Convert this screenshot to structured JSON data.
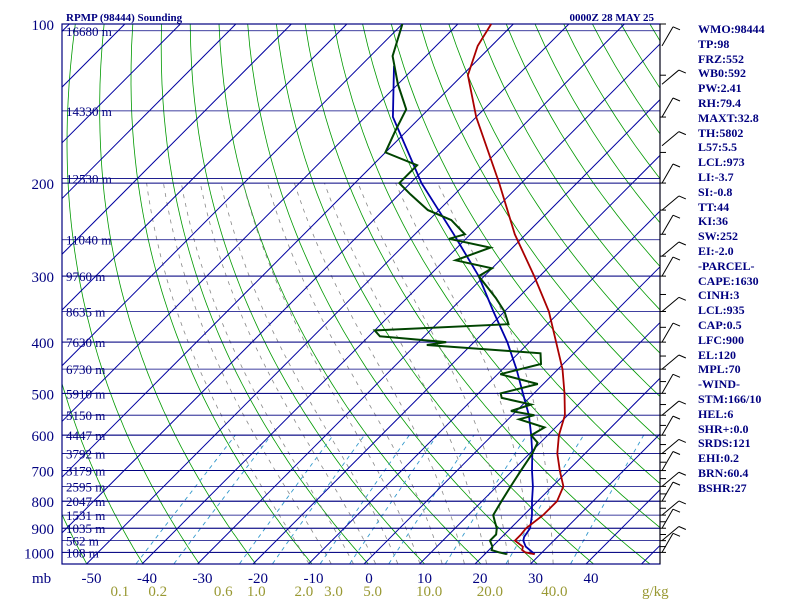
{
  "chart_data": {
    "type": "skew-t",
    "title_left": "RPMP (98444) Sounding",
    "title_right": "0000Z 28 MAY 25",
    "pressure_levels_mb": [
      100,
      200,
      300,
      400,
      500,
      600,
      700,
      800,
      900,
      1000
    ],
    "x_axis_unit_label": "mb",
    "temperature_ticks_c": [
      "-50",
      "-40",
      "-30",
      "-20",
      "-10",
      "0",
      "10",
      "20",
      "30",
      "40"
    ],
    "temperature_tick_values": [
      -50,
      -40,
      -30,
      -20,
      -10,
      0,
      10,
      20,
      30,
      40
    ],
    "mixing_ratio_labels": [
      "0.1",
      "0.2",
      "0.6",
      "1.0",
      "2.0",
      "3.0",
      "5.0",
      "10.0",
      "20.0",
      "40.0"
    ],
    "mixing_ratio_unit": "g/kg",
    "height_labels": [
      {
        "p": 103,
        "text": "16680 m"
      },
      {
        "p": 146,
        "text": "14330 m"
      },
      {
        "p": 196,
        "text": "12530 m"
      },
      {
        "p": 256,
        "text": "11040 m"
      },
      {
        "p": 300,
        "text": "9760 m"
      },
      {
        "p": 350,
        "text": "8635 m"
      },
      {
        "p": 400,
        "text": "7630 m"
      },
      {
        "p": 450,
        "text": "6730 m"
      },
      {
        "p": 500,
        "text": "5910 m"
      },
      {
        "p": 550,
        "text": "5150 m"
      },
      {
        "p": 600,
        "text": "4447 m"
      },
      {
        "p": 650,
        "text": "3792 m"
      },
      {
        "p": 700,
        "text": "3179 m"
      },
      {
        "p": 750,
        "text": "2595 m"
      },
      {
        "p": 800,
        "text": "2047 m"
      },
      {
        "p": 850,
        "text": "1531 m"
      },
      {
        "p": 900,
        "text": "1035 m"
      },
      {
        "p": 950,
        "text": "562 m"
      },
      {
        "p": 1000,
        "text": "108 m"
      }
    ],
    "temperature_profile": [
      [
        1008,
        29
      ],
      [
        1000,
        27
      ],
      [
        990,
        26
      ],
      [
        975,
        25.5
      ],
      [
        950,
        23
      ],
      [
        925,
        23
      ],
      [
        900,
        22.8
      ],
      [
        850,
        23.5
      ],
      [
        800,
        23.5
      ],
      [
        750,
        22
      ],
      [
        700,
        18.5
      ],
      [
        650,
        15
      ],
      [
        600,
        12
      ],
      [
        550,
        9.5
      ],
      [
        500,
        5.5
      ],
      [
        450,
        0.8
      ],
      [
        400,
        -5.2
      ],
      [
        350,
        -12
      ],
      [
        300,
        -21
      ],
      [
        250,
        -32
      ],
      [
        200,
        -44
      ],
      [
        150,
        -60
      ],
      [
        125,
        -69
      ],
      [
        110,
        -72.5
      ],
      [
        100,
        -74
      ]
    ],
    "dewpoint_profile": [
      [
        1008,
        24
      ],
      [
        1000,
        22.3
      ],
      [
        990,
        20.5
      ],
      [
        975,
        20
      ],
      [
        950,
        18.5
      ],
      [
        925,
        18.5
      ],
      [
        900,
        17.5
      ],
      [
        875,
        16
      ],
      [
        850,
        14.5
      ],
      [
        800,
        13.5
      ],
      [
        750,
        12.5
      ],
      [
        700,
        11.5
      ],
      [
        650,
        10.5
      ],
      [
        620,
        9.5
      ],
      [
        600,
        7
      ],
      [
        580,
        8
      ],
      [
        560,
        2
      ],
      [
        550,
        4
      ],
      [
        540,
        -1
      ],
      [
        525,
        1.5
      ],
      [
        510,
        -5
      ],
      [
        500,
        -6
      ],
      [
        480,
        -1
      ],
      [
        460,
        -9.5
      ],
      [
        440,
        -4
      ],
      [
        420,
        -6
      ],
      [
        405,
        -28
      ],
      [
        400,
        -25
      ],
      [
        390,
        -38
      ],
      [
        380,
        -40
      ],
      [
        370,
        -17
      ],
      [
        350,
        -20
      ],
      [
        330,
        -24
      ],
      [
        300,
        -31
      ],
      [
        290,
        -30
      ],
      [
        280,
        -38
      ],
      [
        265,
        -34
      ],
      [
        255,
        -43
      ],
      [
        250,
        -41
      ],
      [
        235,
        -46
      ],
      [
        225,
        -52
      ],
      [
        210,
        -58
      ],
      [
        200,
        -62
      ],
      [
        185,
        -62
      ],
      [
        175,
        -70
      ],
      [
        160,
        -72
      ],
      [
        145,
        -74
      ],
      [
        130,
        -80
      ],
      [
        115,
        -86
      ],
      [
        100,
        -90
      ]
    ],
    "parcel_profile": [
      [
        1008,
        29
      ],
      [
        990,
        27.4
      ],
      [
        975,
        26
      ],
      [
        950,
        24.5
      ],
      [
        935,
        24
      ],
      [
        900,
        23.5
      ],
      [
        850,
        21.5
      ],
      [
        800,
        19
      ],
      [
        750,
        16.5
      ],
      [
        700,
        13.5
      ],
      [
        650,
        10.5
      ],
      [
        600,
        7
      ],
      [
        550,
        3
      ],
      [
        500,
        -2
      ],
      [
        450,
        -7.5
      ],
      [
        400,
        -14
      ],
      [
        350,
        -22
      ],
      [
        300,
        -31
      ],
      [
        250,
        -43
      ],
      [
        200,
        -58
      ],
      [
        150,
        -75
      ],
      [
        120,
        -84
      ]
    ],
    "sidebar": [
      "WMO:98444",
      "TP:98",
      "FRZ:552",
      "WB0:592",
      "PW:2.41",
      "RH:79.4",
      "MAXT:32.8",
      "TH:5802",
      "L57:5.5",
      "LCL:973",
      "LI:-3.7",
      "SI:-0.8",
      "TT:44",
      "KI:36",
      "SW:252",
      "EI:-2.0",
      "-PARCEL-",
      "CAPE:1630",
      "CINH:3",
      "LCL:935",
      "CAP:0.5",
      "LFC:900",
      "EL:120",
      "MPL:70",
      "-WIND-",
      "STM:166/10",
      "HEL:6",
      "SHR+:0.0",
      "SRDS:121",
      "EHI:0.2",
      "BRN:60.4",
      "BSHR:27"
    ],
    "colors": {
      "frame": "#000080",
      "isotherms": "#0000a0",
      "dry_adiabats": "#009900",
      "moist_adiabats": "#888888",
      "mixing_ratio": "#3399cc",
      "temperature": "#aa0000",
      "dewpoint": "#004400",
      "parcel": "#0000aa",
      "height_labels": "#000080",
      "mixing_labels": "#999933",
      "wind_barbs": "#000000"
    }
  }
}
